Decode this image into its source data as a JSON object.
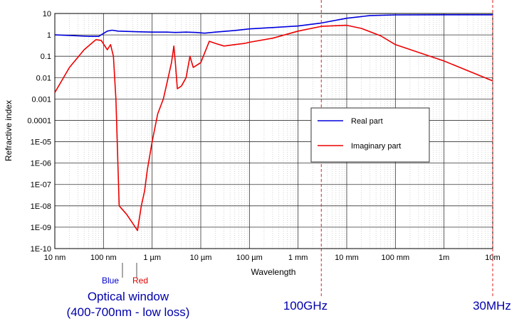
{
  "chart_data": {
    "type": "line",
    "title": "",
    "xlabel": "Wavelength",
    "ylabel": "Refractive index",
    "x_scale": "log",
    "y_scale": "log",
    "xlim": [
      "10 nm",
      "10m"
    ],
    "ylim": [
      "1E-10",
      "10"
    ],
    "grid": true,
    "legend_placement": "center-right",
    "x_tick_labels": [
      "10 nm",
      "100 nm",
      "1 µm",
      "10 µm",
      "100 µm",
      "1 mm",
      "10 mm",
      "100 mm",
      "1m",
      "10m"
    ],
    "y_tick_labels": [
      "10",
      "1",
      "0.1",
      "0.01",
      "0.001",
      "0.0001",
      "1E-05",
      "1E-06",
      "1E-07",
      "1E-08",
      "1E-09",
      "1E-10"
    ],
    "x_unit": "m",
    "series": [
      {
        "name": "Real part",
        "color": "#0000dd",
        "x": [
          1e-08,
          3e-08,
          5e-08,
          8e-08,
          1.2e-07,
          1.5e-07,
          2e-07,
          3e-07,
          5e-07,
          1e-06,
          2e-06,
          3e-06,
          5e-06,
          8e-06,
          1.2e-05,
          2e-05,
          5e-05,
          0.0001,
          0.0003,
          0.001,
          0.003,
          0.01,
          0.03,
          0.1,
          1,
          10
        ],
        "y": [
          1.0,
          0.9,
          0.85,
          0.85,
          1.5,
          1.65,
          1.5,
          1.45,
          1.4,
          1.35,
          1.35,
          1.3,
          1.35,
          1.3,
          1.2,
          1.35,
          1.6,
          1.9,
          2.2,
          2.6,
          3.6,
          6.0,
          8.0,
          8.6,
          8.7,
          8.7
        ]
      },
      {
        "name": "Imaginary part",
        "color": "#ee0000",
        "x": [
          1e-08,
          2e-08,
          4e-08,
          7e-08,
          9e-08,
          1.2e-07,
          1.4e-07,
          1.6e-07,
          1.8e-07,
          2.1e-07,
          3e-07,
          4e-07,
          5e-07,
          6e-07,
          7e-07,
          8e-07,
          1e-06,
          1.3e-06,
          1.7e-06,
          2e-06,
          2.5e-06,
          2.8e-06,
          3e-06,
          3.3e-06,
          4e-06,
          5e-06,
          6e-06,
          7e-06,
          1e-05,
          1.5e-05,
          2e-05,
          3e-05,
          5e-05,
          8e-05,
          0.0001,
          0.0003,
          0.001,
          0.003,
          0.01,
          0.02,
          0.05,
          0.1,
          1,
          10
        ],
        "y": [
          0.002,
          0.03,
          0.2,
          0.6,
          0.55,
          0.2,
          0.35,
          0.1,
          0.001,
          1e-08,
          4e-09,
          1.5e-09,
          7e-10,
          1e-08,
          5e-08,
          5e-07,
          1e-05,
          0.0002,
          0.001,
          0.005,
          0.05,
          0.3,
          0.05,
          0.003,
          0.004,
          0.01,
          0.1,
          0.03,
          0.05,
          0.5,
          0.4,
          0.3,
          0.35,
          0.4,
          0.45,
          0.7,
          1.5,
          2.5,
          2.8,
          2.0,
          0.9,
          0.35,
          0.06,
          0.007
        ]
      }
    ],
    "annotations": {
      "blue_label": "Blue",
      "red_label": "Red",
      "optical_window_line1": "Optical window",
      "optical_window_line2": "(400-700nm - low loss)",
      "marker_100ghz": "100GHz",
      "marker_30mhz": "30MHz"
    }
  }
}
